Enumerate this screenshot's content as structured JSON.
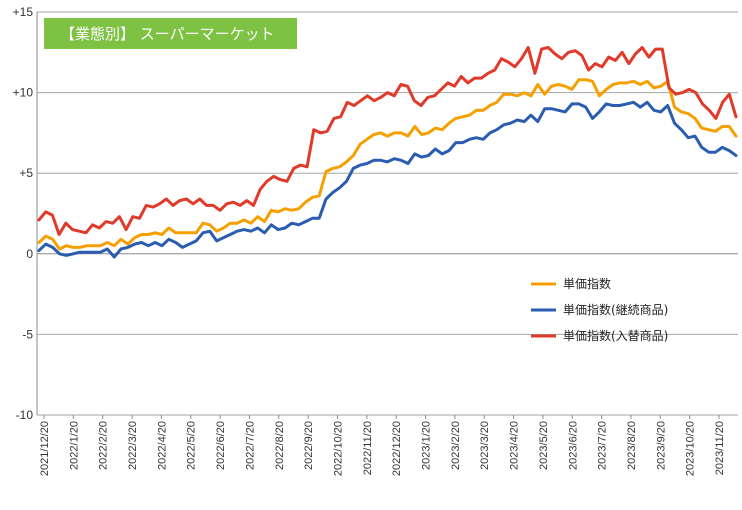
{
  "chart_data": {
    "type": "line",
    "title": "【業態別】 スーパーマーケット",
    "title_box_color": "#7dc242",
    "ylim": [
      -10,
      15
    ],
    "y_ticks": [
      {
        "value": 15,
        "label": "+15"
      },
      {
        "value": 10,
        "label": "+10"
      },
      {
        "value": 5,
        "label": "+5"
      },
      {
        "value": 0,
        "label": "0"
      },
      {
        "value": -5,
        "label": "-5"
      },
      {
        "value": -10,
        "label": "-10"
      }
    ],
    "grid": true,
    "x_tick_labels": [
      "2021/12/20",
      "2022/1/20",
      "2022/2/20",
      "2022/3/20",
      "2022/4/20",
      "2022/5/20",
      "2022/6/20",
      "2022/7/20",
      "2022/8/20",
      "2022/9/20",
      "2022/10/20",
      "2022/11/20",
      "2022/12/20",
      "2023/1/20",
      "2023/2/20",
      "2023/3/20",
      "2023/4/20",
      "2023/5/20",
      "2023/6/20",
      "2023/7/20",
      "2023/8/20",
      "2023/9/20",
      "2023/10/20",
      "2023/11/20"
    ],
    "legend_position": "right",
    "series": [
      {
        "name": "単価指数",
        "color": "#f5a000",
        "values": [
          0.7,
          1.1,
          0.9,
          0.3,
          0.5,
          0.4,
          0.4,
          0.5,
          0.5,
          0.5,
          0.7,
          0.5,
          0.9,
          0.6,
          1.0,
          1.2,
          1.2,
          1.3,
          1.2,
          1.6,
          1.3,
          1.3,
          1.3,
          1.3,
          1.9,
          1.8,
          1.4,
          1.6,
          1.9,
          1.9,
          2.1,
          1.9,
          2.3,
          2.0,
          2.7,
          2.6,
          2.8,
          2.7,
          2.8,
          3.2,
          3.5,
          3.6,
          5.1,
          5.3,
          5.4,
          5.7,
          6.1,
          6.8,
          7.1,
          7.4,
          7.5,
          7.3,
          7.5,
          7.5,
          7.3,
          7.9,
          7.4,
          7.5,
          7.8,
          7.7,
          8.1,
          8.4,
          8.5,
          8.6,
          8.9,
          8.9,
          9.2,
          9.4,
          9.9,
          9.9,
          9.8,
          10.0,
          9.8,
          10.5,
          9.9,
          10.4,
          10.5,
          10.4,
          10.2,
          10.8,
          10.8,
          10.7,
          9.8,
          10.2,
          10.5,
          10.6,
          10.6,
          10.7,
          10.5,
          10.7,
          10.3,
          10.4,
          10.7,
          9.1,
          8.8,
          8.7,
          8.4,
          7.8,
          7.7,
          7.6,
          7.9,
          7.9,
          7.3
        ]
      },
      {
        "name": "単価指数(継続商品)",
        "color": "#2a5db0",
        "values": [
          0.2,
          0.6,
          0.4,
          0.0,
          -0.1,
          0.0,
          0.1,
          0.1,
          0.1,
          0.1,
          0.3,
          -0.2,
          0.3,
          0.4,
          0.6,
          0.7,
          0.5,
          0.7,
          0.5,
          0.9,
          0.7,
          0.4,
          0.6,
          0.8,
          1.3,
          1.4,
          0.8,
          1.0,
          1.2,
          1.4,
          1.5,
          1.4,
          1.6,
          1.3,
          1.8,
          1.5,
          1.6,
          1.9,
          1.8,
          2.0,
          2.2,
          2.2,
          3.4,
          3.8,
          4.1,
          4.5,
          5.3,
          5.5,
          5.6,
          5.8,
          5.8,
          5.7,
          5.9,
          5.8,
          5.6,
          6.2,
          6.0,
          6.1,
          6.5,
          6.2,
          6.4,
          6.9,
          6.9,
          7.1,
          7.2,
          7.1,
          7.5,
          7.7,
          8.0,
          8.1,
          8.3,
          8.2,
          8.6,
          8.2,
          9.0,
          9.0,
          8.9,
          8.8,
          9.3,
          9.3,
          9.1,
          8.4,
          8.8,
          9.3,
          9.2,
          9.2,
          9.3,
          9.4,
          9.1,
          9.4,
          8.9,
          8.8,
          9.2,
          8.1,
          7.7,
          7.2,
          7.3,
          6.6,
          6.3,
          6.3,
          6.6,
          6.4,
          6.1
        ]
      },
      {
        "name": "単価指数(入替商品)",
        "color": "#e03a2a",
        "values": [
          2.1,
          2.6,
          2.4,
          1.2,
          1.9,
          1.5,
          1.4,
          1.3,
          1.8,
          1.6,
          2.0,
          1.9,
          2.3,
          1.5,
          2.3,
          2.2,
          3.0,
          2.9,
          3.1,
          3.4,
          3.0,
          3.3,
          3.4,
          3.1,
          3.4,
          3.0,
          3.0,
          2.7,
          3.1,
          3.2,
          3.0,
          3.3,
          3.0,
          4.0,
          4.5,
          4.8,
          4.6,
          4.5,
          5.3,
          5.5,
          5.4,
          7.7,
          7.5,
          7.6,
          8.4,
          8.5,
          9.4,
          9.2,
          9.5,
          9.8,
          9.5,
          9.7,
          10.0,
          9.8,
          10.5,
          10.4,
          9.5,
          9.2,
          9.7,
          9.8,
          10.2,
          10.6,
          10.4,
          11.0,
          10.6,
          10.9,
          10.9,
          11.2,
          11.4,
          12.1,
          11.9,
          11.6,
          12.1,
          12.8,
          11.2,
          12.7,
          12.8,
          12.4,
          12.1,
          12.5,
          12.6,
          12.3,
          11.4,
          11.8,
          11.6,
          12.2,
          12.0,
          12.5,
          11.8,
          12.4,
          12.8,
          12.2,
          12.7,
          12.7,
          10.3,
          9.9,
          10.0,
          10.2,
          10.0,
          9.3,
          8.9,
          8.4,
          9.4,
          9.9,
          8.5
        ]
      }
    ]
  }
}
